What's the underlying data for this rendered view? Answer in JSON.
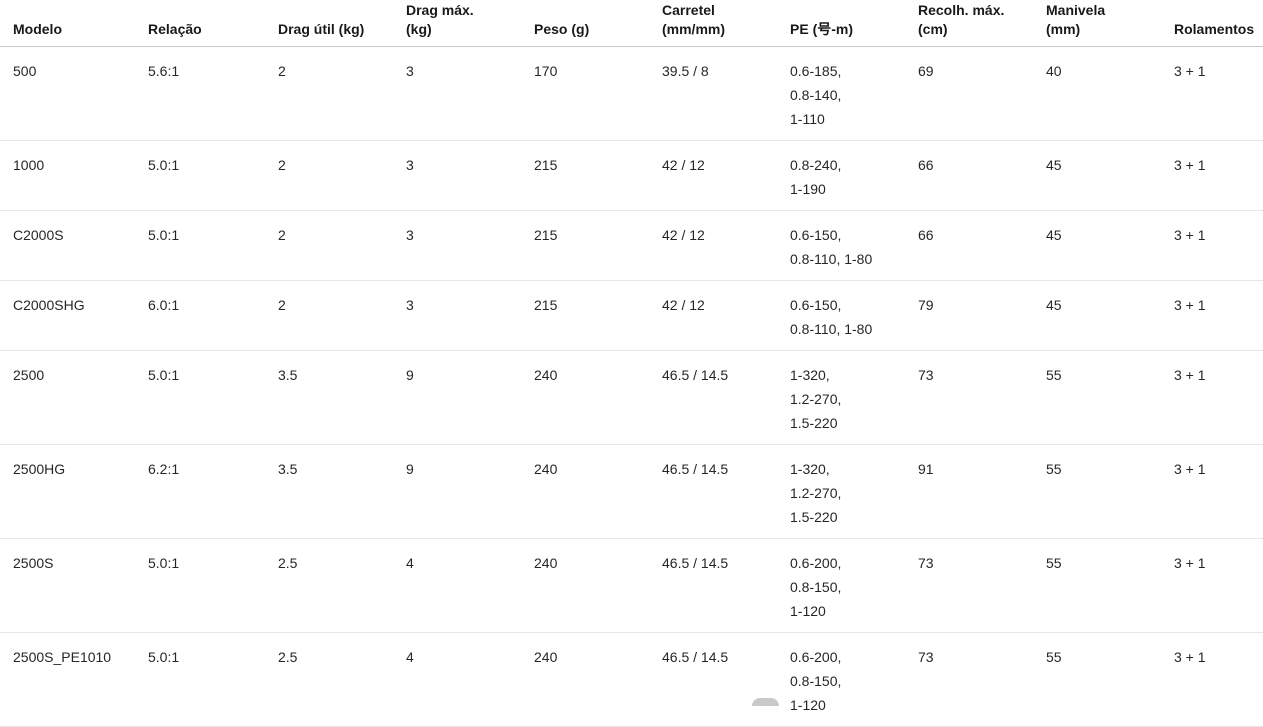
{
  "theme": {
    "background": "#ffffff",
    "header_text_color": "#191919",
    "body_text_color": "#262626",
    "header_border_color": "#c9c9c9",
    "row_border_color": "#e7e7e7"
  },
  "table": {
    "columns": [
      {
        "key": "modelo",
        "label": "Modelo"
      },
      {
        "key": "relacao",
        "label": "Relação"
      },
      {
        "key": "drag_util",
        "label": "Drag útil (kg)"
      },
      {
        "key": "drag_max",
        "label": "Drag máx.\n(kg)"
      },
      {
        "key": "peso",
        "label": "Peso (g)"
      },
      {
        "key": "carretel",
        "label": "Carretel\n(mm/mm)"
      },
      {
        "key": "pe",
        "label": "PE (号-m)"
      },
      {
        "key": "recolh_max",
        "label": "Recolh. máx.\n(cm)"
      },
      {
        "key": "manivela",
        "label": "Manivela\n(mm)"
      },
      {
        "key": "rolamentos",
        "label": "Rolamentos"
      }
    ],
    "rows": [
      {
        "modelo": "500",
        "relacao": "5.6:1",
        "drag_util": "2",
        "drag_max": "3",
        "peso": "170",
        "carretel": "39.5 / 8",
        "pe": "0.6-185,\n0.8-140,\n1-110",
        "recolh_max": "69",
        "manivela": "40",
        "rolamentos": "3 + 1"
      },
      {
        "modelo": "1000",
        "relacao": "5.0:1",
        "drag_util": "2",
        "drag_max": "3",
        "peso": "215",
        "carretel": "42 / 12",
        "pe": "0.8-240,\n1-190",
        "recolh_max": "66",
        "manivela": "45",
        "rolamentos": "3 + 1"
      },
      {
        "modelo": "C2000S",
        "relacao": "5.0:1",
        "drag_util": "2",
        "drag_max": "3",
        "peso": "215",
        "carretel": "42 / 12",
        "pe": "0.6-150,\n0.8-110, 1-80",
        "recolh_max": "66",
        "manivela": "45",
        "rolamentos": "3 + 1"
      },
      {
        "modelo": "C2000SHG",
        "relacao": "6.0:1",
        "drag_util": "2",
        "drag_max": "3",
        "peso": "215",
        "carretel": "42 / 12",
        "pe": "0.6-150,\n0.8-110, 1-80",
        "recolh_max": "79",
        "manivela": "45",
        "rolamentos": "3 + 1"
      },
      {
        "modelo": "2500",
        "relacao": "5.0:1",
        "drag_util": "3.5",
        "drag_max": "9",
        "peso": "240",
        "carretel": "46.5 / 14.5",
        "pe": "1-320,\n1.2-270,\n1.5-220",
        "recolh_max": "73",
        "manivela": "55",
        "rolamentos": "3 + 1"
      },
      {
        "modelo": "2500HG",
        "relacao": "6.2:1",
        "drag_util": "3.5",
        "drag_max": "9",
        "peso": "240",
        "carretel": "46.5 / 14.5",
        "pe": "1-320,\n1.2-270,\n1.5-220",
        "recolh_max": "91",
        "manivela": "55",
        "rolamentos": "3 + 1"
      },
      {
        "modelo": "2500S",
        "relacao": "5.0:1",
        "drag_util": "2.5",
        "drag_max": "4",
        "peso": "240",
        "carretel": "46.5 / 14.5",
        "pe": "0.6-200,\n0.8-150,\n1-120",
        "recolh_max": "73",
        "manivela": "55",
        "rolamentos": "3 + 1"
      },
      {
        "modelo": "2500S_PE1010",
        "relacao": "5.0:1",
        "drag_util": "2.5",
        "drag_max": "4",
        "peso": "240",
        "carretel": "46.5 / 14.5",
        "pe": "0.6-200,\n0.8-150,\n1-120",
        "recolh_max": "73",
        "manivela": "55",
        "rolamentos": "3 + 1"
      }
    ]
  }
}
